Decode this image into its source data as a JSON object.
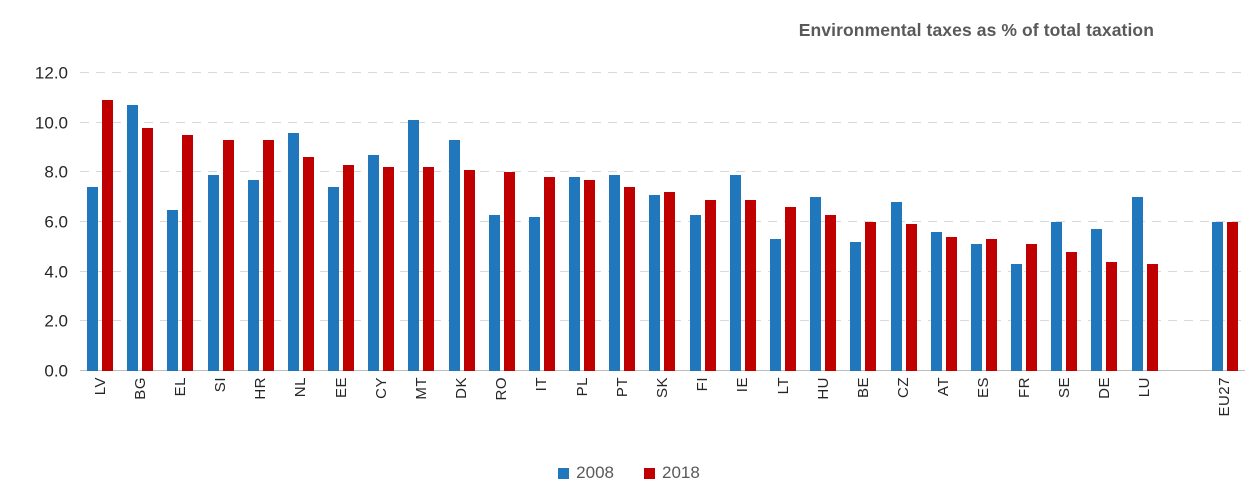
{
  "chart_data": {
    "type": "bar",
    "title": "Environmental taxes as % of total taxation",
    "xlabel": "",
    "ylabel": "",
    "ylim": [
      0,
      12
    ],
    "yticks": [
      0,
      2,
      4,
      6,
      8,
      10,
      12
    ],
    "ytick_labels": [
      "0.0",
      "2.0",
      "4.0",
      "6.0",
      "8.0",
      "10.0",
      "12.0"
    ],
    "grid": "horizontal-dashed",
    "legend_position": "bottom",
    "spacer_before_category": "EU27",
    "categories": [
      "LV",
      "BG",
      "EL",
      "SI",
      "HR",
      "NL",
      "EE",
      "CY",
      "MT",
      "DK",
      "RO",
      "IT",
      "PL",
      "PT",
      "SK",
      "FI",
      "IE",
      "LT",
      "HU",
      "BE",
      "CZ",
      "AT",
      "ES",
      "FR",
      "SE",
      "DE",
      "LU",
      "EU27"
    ],
    "series": [
      {
        "name": "2008",
        "color": "#2077BC",
        "values": [
          7.4,
          10.7,
          6.5,
          7.9,
          7.7,
          9.6,
          7.4,
          8.7,
          10.1,
          9.3,
          6.3,
          6.2,
          7.8,
          7.9,
          7.1,
          6.3,
          7.9,
          5.3,
          7.0,
          5.2,
          6.8,
          5.6,
          5.1,
          4.3,
          6.0,
          5.7,
          7.0,
          6.0
        ]
      },
      {
        "name": "2018",
        "color": "#C00000",
        "values": [
          10.9,
          9.8,
          9.5,
          9.3,
          9.3,
          8.6,
          8.3,
          8.2,
          8.2,
          8.1,
          8.0,
          7.8,
          7.7,
          7.4,
          7.2,
          6.9,
          6.9,
          6.6,
          6.3,
          6.0,
          5.9,
          5.4,
          5.3,
          5.1,
          4.8,
          4.4,
          4.3,
          6.0
        ]
      }
    ]
  },
  "colors": {
    "grid": "#d9d9d9",
    "axis_line": "#bfbfbf",
    "tick_text": "#262626",
    "title_text": "#595959"
  }
}
